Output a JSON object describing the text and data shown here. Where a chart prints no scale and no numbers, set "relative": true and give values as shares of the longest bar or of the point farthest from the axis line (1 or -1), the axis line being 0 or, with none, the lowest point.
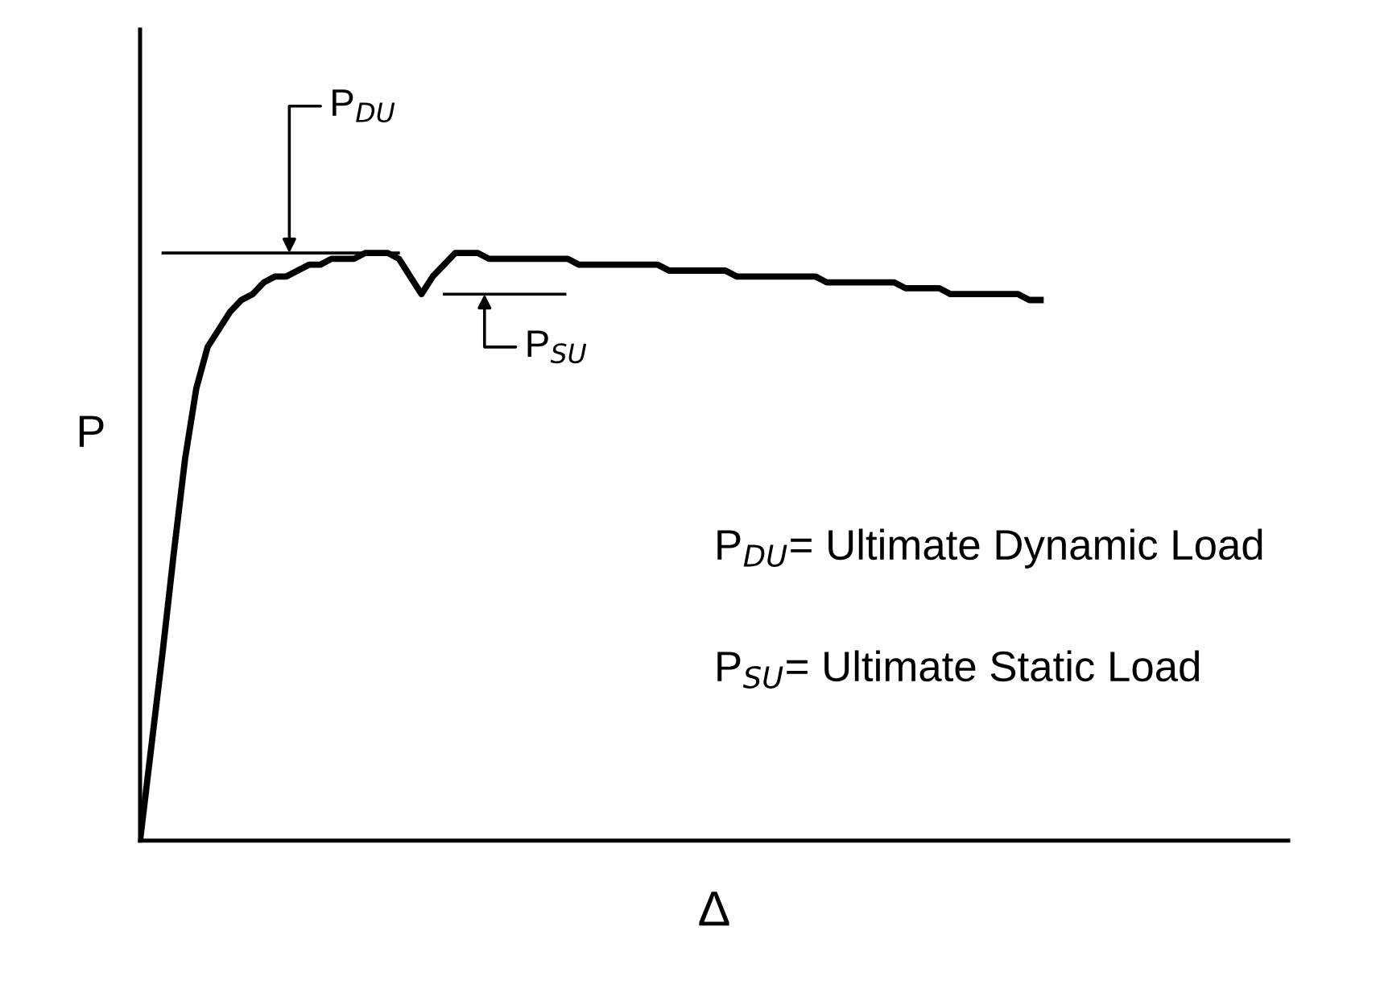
{
  "chart_data": {
    "type": "line",
    "relative": true,
    "xlabel": "Δ",
    "ylabel": "P",
    "categories": [
      null,
      null,
      null,
      null,
      null,
      null,
      null,
      null,
      null,
      null,
      null,
      null,
      null,
      null,
      null,
      null,
      null,
      null,
      null,
      null,
      null,
      null,
      null,
      null,
      null,
      null,
      null,
      null,
      null,
      null,
      null,
      null,
      null,
      null,
      null,
      null,
      null,
      null,
      null,
      null,
      null,
      null,
      null,
      null,
      null,
      null,
      null,
      null,
      null,
      null,
      null,
      null,
      null,
      null,
      null,
      null,
      null,
      null,
      null,
      null,
      null,
      null,
      null,
      null,
      null,
      null,
      null,
      null,
      null,
      null,
      null,
      null,
      null,
      null,
      null,
      null,
      null,
      null,
      null,
      null,
      null,
      null,
      null,
      null,
      null,
      null,
      null,
      null,
      null,
      null,
      null,
      null,
      null,
      null,
      null,
      null,
      null,
      null,
      null,
      null,
      null,
      null,
      null
    ],
    "series": [
      {
        "color": "#000000",
        "values": [
          0,
          0.16,
          0.32,
          0.49,
          0.65,
          0.77,
          0.84,
          0.87,
          0.9,
          0.92,
          0.93,
          0.95,
          0.96,
          0.96,
          0.97,
          0.98,
          0.98,
          0.99,
          0.99,
          0.99,
          1.0,
          1.0,
          1.0,
          0.99,
          0.96,
          0.93,
          0.96,
          0.98,
          1.0,
          1.0,
          1.0,
          0.99,
          0.99,
          0.99,
          0.99,
          0.99,
          0.99,
          0.99,
          0.99,
          0.98,
          0.98,
          0.98,
          0.98,
          0.98,
          0.98,
          0.98,
          0.98,
          0.97,
          0.97,
          0.97,
          0.97,
          0.97,
          0.97,
          0.96,
          0.96,
          0.96,
          0.96,
          0.96,
          0.96,
          0.96,
          0.96,
          0.95,
          0.95,
          0.95,
          0.95,
          0.95,
          0.95,
          0.95,
          0.94,
          0.94,
          0.94,
          0.94,
          0.93,
          0.93,
          0.93,
          0.93,
          0.93,
          0.93,
          0.93,
          0.92,
          0.92,
          null,
          null,
          null,
          null,
          null,
          null,
          null,
          null,
          null,
          null,
          null,
          null,
          null,
          null,
          null,
          null,
          null,
          null,
          null,
          null,
          null,
          null
        ]
      }
    ],
    "ref_lines": [
      {
        "axis": "y",
        "value": 1.0,
        "label": "P$_{DU}$",
        "color": "#000000"
      },
      {
        "axis": "y",
        "value": 0.93,
        "label": "P$_{SU}$",
        "color": "#000000"
      }
    ],
    "annotations": [
      "P$_{DU}$= Ultimate Dynamic Load",
      "P$_{SU}$= Ultimate Static Load"
    ],
    "marker": "none",
    "line_style": "solid"
  }
}
